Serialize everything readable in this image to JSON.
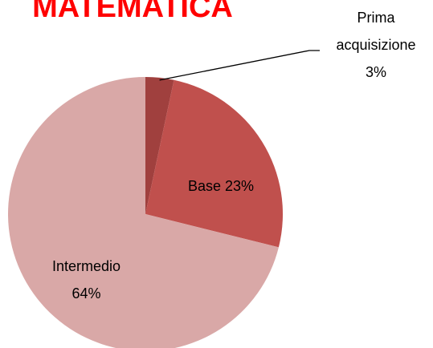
{
  "chart_data": {
    "type": "pie",
    "title": "MATEMATICA",
    "categories": [
      "Prima acquisizione",
      "Base",
      "Intermedio"
    ],
    "values": [
      3,
      23,
      64
    ],
    "value_labels": [
      "3%",
      "23%",
      "64%"
    ],
    "colors": [
      "#a0403e",
      "#c0504d",
      "#d9a8a7"
    ]
  }
}
